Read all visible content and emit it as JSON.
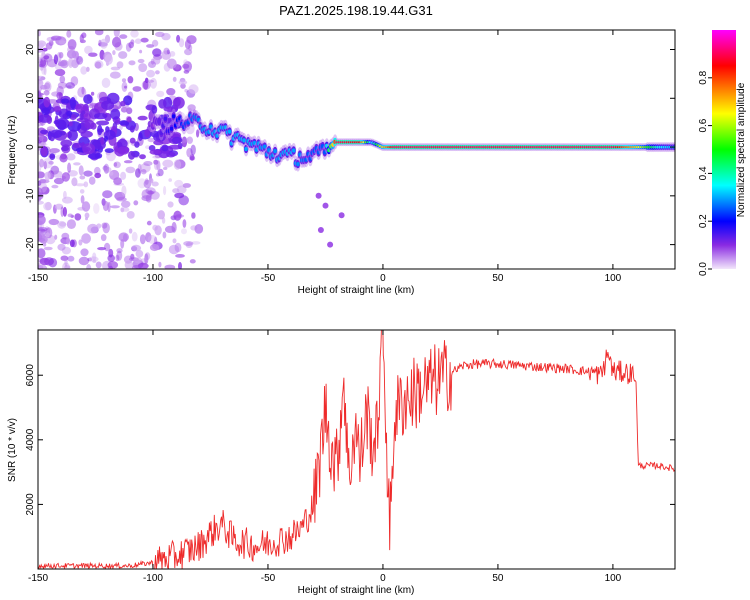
{
  "title": "PAZ1.2025.198.19.44.G31",
  "chart_data": [
    {
      "type": "heatmap",
      "xlabel": "Height of straight line (km)",
      "ylabel": "Frequency (Hz)",
      "xlim": [
        -150,
        127
      ],
      "ylim": [
        -25,
        24
      ],
      "xticks": [
        -150,
        -100,
        -50,
        0,
        50,
        100
      ],
      "yticks": [
        -20,
        -10,
        0,
        10,
        20
      ],
      "colorbar": {
        "label": "Normalized spectral amplitude",
        "range": [
          0,
          1
        ],
        "ticks": [
          0.0,
          0.2,
          0.4,
          0.6,
          0.8
        ],
        "colormap": [
          "#f2e6fa",
          "#8a2be2",
          "#0000ff",
          "#00ffff",
          "#00ff00",
          "#ffff00",
          "#ff0000",
          "#ff00ff"
        ]
      },
      "ridge": {
        "x": [
          -100,
          -90,
          -80,
          -70,
          -60,
          -50,
          -40,
          -32,
          -25,
          -20,
          -10,
          -5,
          0,
          5,
          10,
          20,
          40,
          60,
          80,
          100,
          110,
          120,
          127
        ],
        "y": [
          4,
          5,
          5,
          3,
          1,
          -1,
          -2,
          -2,
          -1,
          1,
          1,
          1,
          0,
          0,
          0,
          0,
          0,
          0,
          0,
          0,
          0,
          0,
          0
        ],
        "amplitude": [
          0.1,
          0.2,
          0.28,
          0.3,
          0.3,
          0.28,
          0.3,
          0.25,
          0.25,
          0.9,
          0.85,
          0.3,
          0.7,
          0.9,
          0.9,
          0.9,
          0.9,
          0.9,
          0.9,
          0.9,
          0.7,
          0.35,
          0.3
        ]
      }
    },
    {
      "type": "line",
      "xlabel": "Height of straight line (km)",
      "ylabel": "SNR (10 * v/v)",
      "xlim": [
        -150,
        127
      ],
      "ylim": [
        0,
        7400
      ],
      "xticks": [
        -150,
        -100,
        -50,
        0,
        50,
        100
      ],
      "yticks": [
        2000,
        4000,
        6000
      ],
      "color": "#ee2a2a",
      "x": [
        -150,
        -130,
        -110,
        -100,
        -90,
        -80,
        -75,
        -70,
        -65,
        -60,
        -55,
        -50,
        -45,
        -40,
        -35,
        -30,
        -28,
        -25,
        -22,
        -20,
        -17,
        -15,
        -12,
        -10,
        -7,
        -5,
        -3,
        0,
        3,
        5,
        10,
        15,
        20,
        25,
        30,
        35,
        40,
        50,
        60,
        70,
        80,
        90,
        95,
        98,
        100,
        105,
        110,
        111,
        115,
        120,
        127
      ],
      "y": [
        100,
        100,
        100,
        200,
        400,
        700,
        1100,
        1400,
        900,
        800,
        700,
        800,
        900,
        1000,
        1300,
        2000,
        3000,
        5000,
        3500,
        3200,
        6000,
        2800,
        4500,
        3300,
        4900,
        4000,
        3900,
        7400,
        1000,
        4800,
        5300,
        5500,
        5700,
        5900,
        6100,
        6300,
        6350,
        6350,
        6300,
        6250,
        6200,
        6100,
        6000,
        6700,
        6100,
        6100,
        6000,
        3200,
        3200,
        3200,
        3100
      ]
    }
  ]
}
